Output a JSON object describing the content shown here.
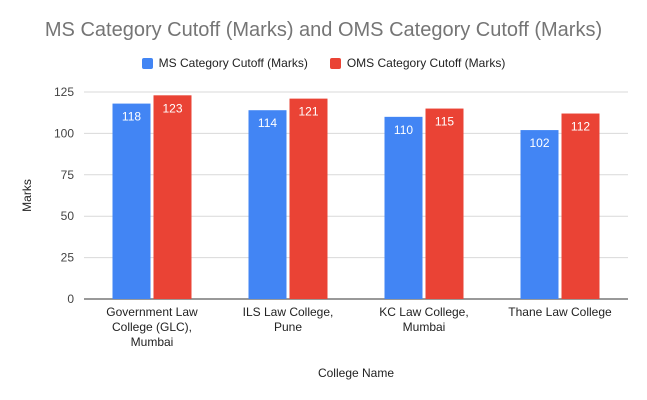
{
  "chart_data": {
    "type": "bar",
    "title": "MS Category Cutoff (Marks) and OMS Category Cutoff (Marks)",
    "xlabel": "College Name",
    "ylabel": "Marks",
    "ylim": [
      0,
      125
    ],
    "yticks": [
      0,
      25,
      50,
      75,
      100,
      125
    ],
    "grid": true,
    "legend_position": "top",
    "categories": [
      [
        "Government Law",
        "College (GLC),",
        "Mumbai"
      ],
      [
        "ILS Law College,",
        "Pune"
      ],
      [
        "KC Law College,",
        "Mumbai"
      ],
      [
        "Thane Law College"
      ]
    ],
    "series": [
      {
        "name": "MS Category Cutoff (Marks)",
        "color": "#4285f4",
        "values": [
          118,
          114,
          110,
          102
        ]
      },
      {
        "name": "OMS Category Cutoff (Marks)",
        "color": "#ea4335",
        "values": [
          123,
          121,
          115,
          112
        ]
      }
    ]
  }
}
